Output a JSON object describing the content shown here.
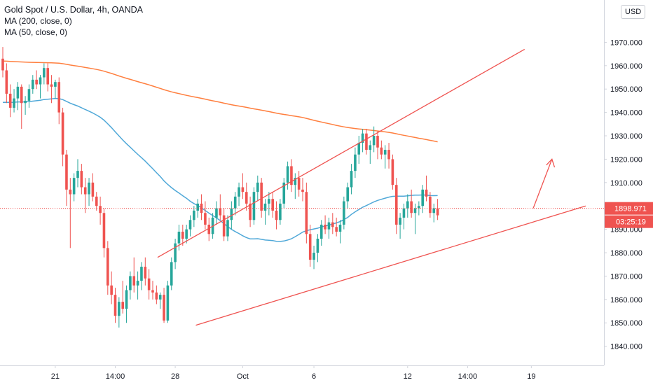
{
  "legend": {
    "title": "Gold Spot / U.S. Dollar, 4h, OANDA",
    "ma200": "MA (200, close, 0)",
    "ma50": "MA (50, close, 0)"
  },
  "currency_badge": "USD",
  "current_price_label": "1898.971",
  "countdown_label": "03:25:19",
  "colors": {
    "up": "#26a69a",
    "down": "#ef5350",
    "ma200": "#ff7f3f",
    "ma50": "#4fa8d8",
    "trendline": "#ef5350",
    "price_tag": "#ef5350"
  },
  "chart_data": {
    "type": "candlestick",
    "symbol": "Gold Spot / U.S. Dollar",
    "interval": "4h",
    "source": "OANDA",
    "y_axis_ticks": [
      "1970.000",
      "1960.000",
      "1950.000",
      "1940.000",
      "1930.000",
      "1920.000",
      "1910.000",
      "1900.000",
      "1890.000",
      "1880.000",
      "1870.000",
      "1860.000",
      "1850.000",
      "1840.000"
    ],
    "ylim": [
      1836,
      1983
    ],
    "x_axis_ticks": [
      {
        "label": "21",
        "i": 14
      },
      {
        "label": "14:00",
        "i": 30
      },
      {
        "label": "28",
        "i": 46
      },
      {
        "label": "Oct",
        "i": 64
      },
      {
        "label": "6",
        "i": 83
      },
      {
        "label": "12",
        "i": 108
      },
      {
        "label": "14:00",
        "i": 124
      },
      {
        "label": "19",
        "i": 141
      }
    ],
    "candles": [
      [
        1963,
        1968,
        1955,
        1958
      ],
      [
        1958,
        1961,
        1944,
        1948
      ],
      [
        1948,
        1952,
        1938,
        1942
      ],
      [
        1942,
        1950,
        1940,
        1946
      ],
      [
        1946,
        1953,
        1941,
        1951
      ],
      [
        1951,
        1952,
        1933,
        1944
      ],
      [
        1944,
        1947,
        1939,
        1945
      ],
      [
        1945,
        1952,
        1942,
        1950
      ],
      [
        1950,
        1956,
        1948,
        1954
      ],
      [
        1954,
        1958,
        1950,
        1952
      ],
      [
        1952,
        1956,
        1946,
        1955
      ],
      [
        1955,
        1961,
        1952,
        1959
      ],
      [
        1959,
        1961,
        1949,
        1952
      ],
      [
        1952,
        1956,
        1944,
        1951
      ],
      [
        1951,
        1954,
        1946,
        1953
      ],
      [
        1953,
        1955,
        1935,
        1940
      ],
      [
        1940,
        1942,
        1917,
        1922
      ],
      [
        1922,
        1924,
        1900,
        1907
      ],
      [
        1907,
        1912,
        1882,
        1905
      ],
      [
        1905,
        1914,
        1902,
        1912
      ],
      [
        1912,
        1920,
        1908,
        1915
      ],
      [
        1915,
        1918,
        1905,
        1908
      ],
      [
        1908,
        1912,
        1897,
        1905
      ],
      [
        1905,
        1912,
        1900,
        1910
      ],
      [
        1910,
        1914,
        1902,
        1904
      ],
      [
        1904,
        1906,
        1898,
        1900
      ],
      [
        1900,
        1904,
        1892,
        1897
      ],
      [
        1897,
        1899,
        1878,
        1882
      ],
      [
        1882,
        1885,
        1862,
        1866
      ],
      [
        1866,
        1872,
        1858,
        1862
      ],
      [
        1862,
        1865,
        1850,
        1853
      ],
      [
        1853,
        1861,
        1848,
        1859
      ],
      [
        1859,
        1868,
        1854,
        1856
      ],
      [
        1856,
        1866,
        1850,
        1864
      ],
      [
        1864,
        1872,
        1860,
        1870
      ],
      [
        1870,
        1878,
        1863,
        1866
      ],
      [
        1866,
        1872,
        1860,
        1868
      ],
      [
        1868,
        1876,
        1864,
        1874
      ],
      [
        1874,
        1878,
        1866,
        1869
      ],
      [
        1869,
        1873,
        1860,
        1864
      ],
      [
        1864,
        1868,
        1860,
        1863
      ],
      [
        1863,
        1866,
        1858,
        1860
      ],
      [
        1860,
        1863,
        1856,
        1862
      ],
      [
        1862,
        1865,
        1850,
        1851
      ],
      [
        1851,
        1868,
        1850,
        1866
      ],
      [
        1866,
        1878,
        1864,
        1876
      ],
      [
        1876,
        1886,
        1873,
        1884
      ],
      [
        1884,
        1892,
        1881,
        1889
      ],
      [
        1889,
        1892,
        1883,
        1886
      ],
      [
        1886,
        1892,
        1884,
        1890
      ],
      [
        1890,
        1896,
        1887,
        1894
      ],
      [
        1894,
        1900,
        1891,
        1898
      ],
      [
        1898,
        1903,
        1895,
        1901
      ],
      [
        1901,
        1905,
        1894,
        1897
      ],
      [
        1897,
        1902,
        1890,
        1892
      ],
      [
        1892,
        1895,
        1885,
        1888
      ],
      [
        1888,
        1897,
        1886,
        1895
      ],
      [
        1895,
        1902,
        1892,
        1899
      ],
      [
        1899,
        1905,
        1894,
        1896
      ],
      [
        1896,
        1899,
        1885,
        1887
      ],
      [
        1887,
        1896,
        1885,
        1894
      ],
      [
        1894,
        1902,
        1890,
        1899
      ],
      [
        1899,
        1906,
        1896,
        1904
      ],
      [
        1904,
        1910,
        1900,
        1908
      ],
      [
        1908,
        1914,
        1903,
        1906
      ],
      [
        1906,
        1910,
        1898,
        1901
      ],
      [
        1901,
        1904,
        1891,
        1894
      ],
      [
        1894,
        1908,
        1892,
        1906
      ],
      [
        1906,
        1913,
        1902,
        1910
      ],
      [
        1910,
        1912,
        1895,
        1898
      ],
      [
        1898,
        1903,
        1892,
        1901
      ],
      [
        1901,
        1906,
        1896,
        1903
      ],
      [
        1903,
        1906,
        1895,
        1898
      ],
      [
        1898,
        1902,
        1890,
        1894
      ],
      [
        1894,
        1903,
        1892,
        1901
      ],
      [
        1901,
        1912,
        1899,
        1910
      ],
      [
        1910,
        1919,
        1907,
        1917
      ],
      [
        1917,
        1920,
        1906,
        1909
      ],
      [
        1909,
        1914,
        1903,
        1912
      ],
      [
        1912,
        1915,
        1904,
        1907
      ],
      [
        1907,
        1912,
        1902,
        1906
      ],
      [
        1906,
        1910,
        1884,
        1888
      ],
      [
        1888,
        1892,
        1874,
        1877
      ],
      [
        1877,
        1883,
        1873,
        1880
      ],
      [
        1880,
        1888,
        1876,
        1886
      ],
      [
        1886,
        1894,
        1883,
        1892
      ],
      [
        1892,
        1896,
        1888,
        1890
      ],
      [
        1890,
        1895,
        1886,
        1893
      ],
      [
        1893,
        1897,
        1888,
        1891
      ],
      [
        1891,
        1895,
        1887,
        1889
      ],
      [
        1889,
        1894,
        1884,
        1892
      ],
      [
        1892,
        1904,
        1890,
        1902
      ],
      [
        1902,
        1910,
        1899,
        1908
      ],
      [
        1908,
        1918,
        1905,
        1915
      ],
      [
        1915,
        1925,
        1912,
        1922
      ],
      [
        1922,
        1930,
        1918,
        1927
      ],
      [
        1927,
        1933,
        1923,
        1931
      ],
      [
        1931,
        1933,
        1922,
        1924
      ],
      [
        1924,
        1928,
        1918,
        1926
      ],
      [
        1926,
        1934,
        1923,
        1930
      ],
      [
        1930,
        1932,
        1920,
        1925
      ],
      [
        1925,
        1928,
        1920,
        1922
      ],
      [
        1922,
        1926,
        1916,
        1924
      ],
      [
        1924,
        1927,
        1916,
        1920
      ],
      [
        1920,
        1922,
        1907,
        1909
      ],
      [
        1909,
        1912,
        1888,
        1892
      ],
      [
        1892,
        1897,
        1886,
        1895
      ],
      [
        1895,
        1901,
        1890,
        1899
      ],
      [
        1899,
        1905,
        1895,
        1902
      ],
      [
        1902,
        1907,
        1895,
        1897
      ],
      [
        1897,
        1901,
        1888,
        1899
      ],
      [
        1899,
        1902,
        1896,
        1900
      ],
      [
        1900,
        1909,
        1897,
        1907
      ],
      [
        1907,
        1913,
        1902,
        1904
      ],
      [
        1904,
        1906,
        1895,
        1897
      ],
      [
        1897,
        1901,
        1893,
        1899
      ],
      [
        1899,
        1903,
        1894,
        1896
      ]
    ]
  }
}
